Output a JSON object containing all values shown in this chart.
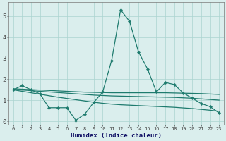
{
  "xlabel": "Humidex (Indice chaleur)",
  "x": [
    0,
    1,
    2,
    3,
    4,
    5,
    6,
    7,
    8,
    9,
    10,
    11,
    12,
    13,
    14,
    15,
    16,
    17,
    18,
    19,
    20,
    21,
    22,
    23
  ],
  "line_main": [
    1.5,
    1.7,
    1.5,
    1.3,
    0.65,
    0.65,
    0.65,
    0.05,
    0.35,
    0.9,
    1.4,
    2.9,
    5.3,
    4.75,
    3.3,
    2.5,
    1.4,
    1.85,
    1.75,
    1.35,
    1.1,
    0.85,
    0.7,
    0.4
  ],
  "line_upper": [
    1.55,
    1.53,
    1.51,
    1.49,
    1.47,
    1.45,
    1.43,
    1.41,
    1.39,
    1.38,
    1.37,
    1.36,
    1.36,
    1.36,
    1.36,
    1.36,
    1.36,
    1.36,
    1.35,
    1.34,
    1.33,
    1.32,
    1.3,
    1.28
  ],
  "line_mid": [
    1.52,
    1.49,
    1.46,
    1.43,
    1.4,
    1.37,
    1.34,
    1.31,
    1.28,
    1.25,
    1.23,
    1.21,
    1.2,
    1.19,
    1.18,
    1.17,
    1.16,
    1.15,
    1.14,
    1.12,
    1.1,
    1.07,
    1.04,
    1.01
  ],
  "line_lower": [
    1.5,
    1.43,
    1.36,
    1.29,
    1.22,
    1.15,
    1.09,
    1.03,
    0.97,
    0.91,
    0.86,
    0.82,
    0.79,
    0.77,
    0.75,
    0.73,
    0.71,
    0.69,
    0.67,
    0.64,
    0.61,
    0.57,
    0.53,
    0.48
  ],
  "color": "#1e7b6e",
  "bg_color": "#daeeed",
  "grid_color": "#aad4d0",
  "ylim": [
    -0.15,
    5.65
  ],
  "yticks": [
    0,
    1,
    2,
    3,
    4,
    5
  ]
}
